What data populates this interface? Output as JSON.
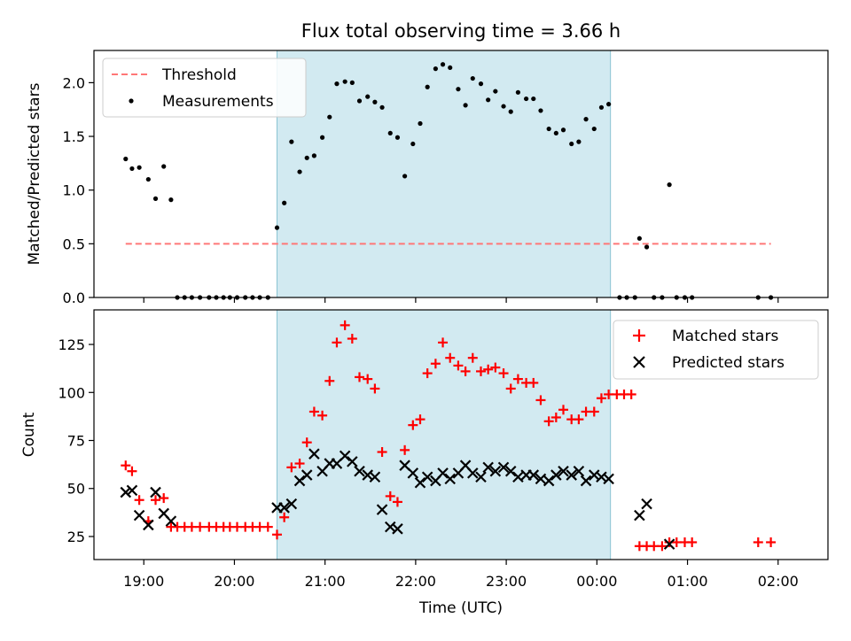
{
  "title": "Flux total observing time = 3.66 h",
  "chart_data": [
    {
      "type": "scatter",
      "title": "Flux total observing time = 3.66 h",
      "xlabel": "",
      "ylabel": "Matched/Predicted stars",
      "xlim_hours": [
        18.45,
        26.55
      ],
      "ylim": [
        0,
        2.3
      ],
      "yticks": [
        0.0,
        0.5,
        1.0,
        1.5,
        2.0
      ],
      "ytick_labels": [
        "0.0",
        "0.5",
        "1.0",
        "1.5",
        "2.0"
      ],
      "shaded_span_hours": [
        20.47,
        24.15
      ],
      "legend_loc": "upper-left",
      "legend": [
        "Threshold",
        "Measurements"
      ],
      "threshold": {
        "name": "Threshold",
        "value": 0.5,
        "x_range_hours": [
          18.8,
          25.92
        ],
        "color": "#ff7777"
      },
      "measurements": {
        "name": "Measurements",
        "color": "#000000",
        "points": [
          [
            18.8,
            1.29
          ],
          [
            18.87,
            1.2
          ],
          [
            18.95,
            1.21
          ],
          [
            19.05,
            1.1
          ],
          [
            19.13,
            0.92
          ],
          [
            19.22,
            1.22
          ],
          [
            19.3,
            0.91
          ],
          [
            19.37,
            0
          ],
          [
            19.45,
            0
          ],
          [
            19.53,
            0
          ],
          [
            19.62,
            0
          ],
          [
            19.72,
            0
          ],
          [
            19.8,
            0
          ],
          [
            19.88,
            0
          ],
          [
            19.95,
            0
          ],
          [
            20.03,
            0
          ],
          [
            20.12,
            0
          ],
          [
            20.2,
            0
          ],
          [
            20.28,
            0
          ],
          [
            20.37,
            0
          ],
          [
            20.47,
            0.65
          ],
          [
            20.55,
            0.88
          ],
          [
            20.63,
            1.45
          ],
          [
            20.72,
            1.17
          ],
          [
            20.8,
            1.3
          ],
          [
            20.88,
            1.32
          ],
          [
            20.97,
            1.49
          ],
          [
            21.05,
            1.68
          ],
          [
            21.13,
            1.99
          ],
          [
            21.22,
            2.01
          ],
          [
            21.3,
            2.0
          ],
          [
            21.38,
            1.83
          ],
          [
            21.47,
            1.87
          ],
          [
            21.55,
            1.82
          ],
          [
            21.63,
            1.77
          ],
          [
            21.72,
            1.53
          ],
          [
            21.8,
            1.49
          ],
          [
            21.88,
            1.13
          ],
          [
            21.97,
            1.43
          ],
          [
            22.05,
            1.62
          ],
          [
            22.13,
            1.96
          ],
          [
            22.22,
            2.13
          ],
          [
            22.3,
            2.17
          ],
          [
            22.38,
            2.14
          ],
          [
            22.47,
            1.94
          ],
          [
            22.55,
            1.79
          ],
          [
            22.63,
            2.04
          ],
          [
            22.72,
            1.99
          ],
          [
            22.8,
            1.84
          ],
          [
            22.88,
            1.92
          ],
          [
            22.97,
            1.78
          ],
          [
            23.05,
            1.73
          ],
          [
            23.13,
            1.91
          ],
          [
            23.22,
            1.85
          ],
          [
            23.3,
            1.85
          ],
          [
            23.38,
            1.74
          ],
          [
            23.47,
            1.57
          ],
          [
            23.55,
            1.53
          ],
          [
            23.63,
            1.56
          ],
          [
            23.72,
            1.43
          ],
          [
            23.8,
            1.45
          ],
          [
            23.88,
            1.66
          ],
          [
            23.97,
            1.57
          ],
          [
            24.05,
            1.77
          ],
          [
            24.13,
            1.8
          ],
          [
            24.25,
            0
          ],
          [
            24.33,
            0
          ],
          [
            24.42,
            0
          ],
          [
            24.47,
            0.55
          ],
          [
            24.55,
            0.47
          ],
          [
            24.63,
            0
          ],
          [
            24.72,
            0
          ],
          [
            24.8,
            1.05
          ],
          [
            24.88,
            0
          ],
          [
            24.97,
            0
          ],
          [
            25.05,
            0
          ],
          [
            25.78,
            0
          ],
          [
            25.92,
            0
          ]
        ]
      }
    },
    {
      "type": "scatter",
      "title": "",
      "xlabel": "Time (UTC)",
      "ylabel": "Count",
      "xlim_hours": [
        18.45,
        26.55
      ],
      "ylim": [
        13,
        143
      ],
      "yticks": [
        25,
        50,
        75,
        100,
        125
      ],
      "ytick_labels": [
        "25",
        "50",
        "75",
        "100",
        "125"
      ],
      "xticks_hours": [
        19,
        20,
        21,
        22,
        23,
        24,
        25,
        26
      ],
      "xtick_labels": [
        "19:00",
        "20:00",
        "21:00",
        "22:00",
        "23:00",
        "00:00",
        "01:00",
        "02:00"
      ],
      "shaded_span_hours": [
        20.47,
        24.15
      ],
      "legend_loc": "upper-right",
      "legend": [
        "Matched stars",
        "Predicted stars"
      ],
      "series": [
        {
          "name": "Matched stars",
          "marker": "+",
          "color": "#ff0000",
          "points": [
            [
              18.8,
              62
            ],
            [
              18.87,
              59
            ],
            [
              18.95,
              44
            ],
            [
              19.05,
              33
            ],
            [
              19.13,
              44
            ],
            [
              19.22,
              45
            ],
            [
              19.3,
              30
            ],
            [
              19.37,
              30
            ],
            [
              19.45,
              30
            ],
            [
              19.53,
              30
            ],
            [
              19.62,
              30
            ],
            [
              19.72,
              30
            ],
            [
              19.8,
              30
            ],
            [
              19.88,
              30
            ],
            [
              19.95,
              30
            ],
            [
              20.03,
              30
            ],
            [
              20.12,
              30
            ],
            [
              20.2,
              30
            ],
            [
              20.28,
              30
            ],
            [
              20.37,
              30
            ],
            [
              20.47,
              26
            ],
            [
              20.55,
              35
            ],
            [
              20.63,
              61
            ],
            [
              20.72,
              63
            ],
            [
              20.8,
              74
            ],
            [
              20.88,
              90
            ],
            [
              20.97,
              88
            ],
            [
              21.05,
              106
            ],
            [
              21.13,
              126
            ],
            [
              21.22,
              135
            ],
            [
              21.3,
              128
            ],
            [
              21.38,
              108
            ],
            [
              21.47,
              107
            ],
            [
              21.55,
              102
            ],
            [
              21.63,
              69
            ],
            [
              21.72,
              46
            ],
            [
              21.8,
              43
            ],
            [
              21.88,
              70
            ],
            [
              21.97,
              83
            ],
            [
              22.05,
              86
            ],
            [
              22.13,
              110
            ],
            [
              22.22,
              115
            ],
            [
              22.3,
              126
            ],
            [
              22.38,
              118
            ],
            [
              22.47,
              114
            ],
            [
              22.55,
              111
            ],
            [
              22.63,
              118
            ],
            [
              22.72,
              111
            ],
            [
              22.8,
              112
            ],
            [
              22.88,
              113
            ],
            [
              22.97,
              110
            ],
            [
              23.05,
              102
            ],
            [
              23.13,
              107
            ],
            [
              23.22,
              105
            ],
            [
              23.3,
              105
            ],
            [
              23.38,
              96
            ],
            [
              23.47,
              85
            ],
            [
              23.55,
              87
            ],
            [
              23.63,
              91
            ],
            [
              23.72,
              86
            ],
            [
              23.8,
              86
            ],
            [
              23.88,
              90
            ],
            [
              23.97,
              90
            ],
            [
              24.05,
              97
            ],
            [
              24.13,
              99
            ],
            [
              24.22,
              99
            ],
            [
              24.3,
              99
            ],
            [
              24.38,
              99
            ],
            [
              24.47,
              20
            ],
            [
              24.55,
              20
            ],
            [
              24.63,
              20
            ],
            [
              24.72,
              20
            ],
            [
              24.8,
              22
            ],
            [
              24.88,
              22
            ],
            [
              24.97,
              22
            ],
            [
              25.05,
              22
            ],
            [
              25.78,
              22
            ],
            [
              25.92,
              22
            ]
          ]
        },
        {
          "name": "Predicted stars",
          "marker": "x",
          "color": "#000000",
          "points": [
            [
              18.8,
              48
            ],
            [
              18.87,
              49
            ],
            [
              18.95,
              36
            ],
            [
              19.05,
              31
            ],
            [
              19.13,
              48
            ],
            [
              19.22,
              37
            ],
            [
              19.3,
              33
            ],
            [
              20.47,
              40
            ],
            [
              20.55,
              40
            ],
            [
              20.63,
              42
            ],
            [
              20.72,
              54
            ],
            [
              20.8,
              57
            ],
            [
              20.88,
              68
            ],
            [
              20.97,
              59
            ],
            [
              21.05,
              63
            ],
            [
              21.13,
              63
            ],
            [
              21.22,
              67
            ],
            [
              21.3,
              64
            ],
            [
              21.38,
              59
            ],
            [
              21.47,
              57
            ],
            [
              21.55,
              56
            ],
            [
              21.63,
              39
            ],
            [
              21.72,
              30
            ],
            [
              21.8,
              29
            ],
            [
              21.88,
              62
            ],
            [
              21.97,
              58
            ],
            [
              22.05,
              53
            ],
            [
              22.13,
              56
            ],
            [
              22.22,
              54
            ],
            [
              22.3,
              58
            ],
            [
              22.38,
              55
            ],
            [
              22.47,
              58
            ],
            [
              22.55,
              62
            ],
            [
              22.63,
              58
            ],
            [
              22.72,
              56
            ],
            [
              22.8,
              61
            ],
            [
              22.88,
              59
            ],
            [
              22.97,
              61
            ],
            [
              23.05,
              59
            ],
            [
              23.13,
              56
            ],
            [
              23.22,
              57
            ],
            [
              23.3,
              57
            ],
            [
              23.38,
              55
            ],
            [
              23.47,
              54
            ],
            [
              23.55,
              57
            ],
            [
              23.63,
              59
            ],
            [
              23.72,
              57
            ],
            [
              23.8,
              59
            ],
            [
              23.88,
              54
            ],
            [
              23.97,
              57
            ],
            [
              24.05,
              56
            ],
            [
              24.13,
              55
            ],
            [
              24.47,
              36
            ],
            [
              24.55,
              42
            ],
            [
              24.8,
              21
            ]
          ]
        }
      ]
    }
  ],
  "colors": {
    "span_fill": "#add8e6",
    "span_edge": "#8ac3d3",
    "threshold": "#ff7777",
    "matched": "#ff0000",
    "predicted": "#000000"
  }
}
